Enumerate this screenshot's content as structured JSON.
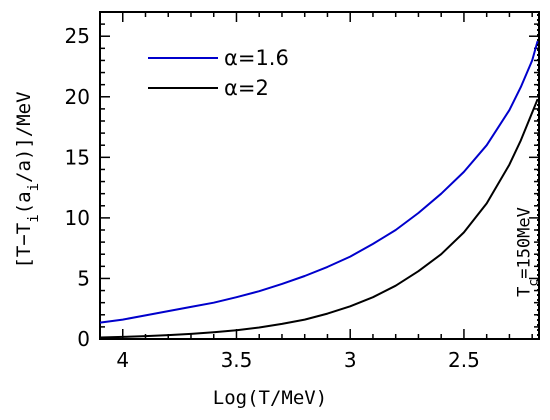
{
  "chart_data": {
    "type": "line",
    "xlabel": "Log(T/MeV)",
    "ylabel_parts": [
      "[T−T",
      "i",
      "(a",
      "i",
      "/a)]/MeV"
    ],
    "x_reversed": true,
    "xlim": [
      4.1,
      2.17
    ],
    "ylim": [
      0,
      27
    ],
    "xticks": [
      4,
      3.5,
      3,
      2.5
    ],
    "xtick_labels": [
      "4",
      "3.5",
      "3",
      "2.5"
    ],
    "yticks": [
      0,
      5,
      10,
      15,
      20,
      25
    ],
    "ytick_labels": [
      "0",
      "5",
      "10",
      "15",
      "20",
      "25"
    ],
    "grid": false,
    "legend": {
      "placement": "top-left",
      "items": [
        {
          "label": "α=1.6",
          "color": "#0000cc"
        },
        {
          "label": "α=2",
          "color": "#000000"
        }
      ]
    },
    "vline": {
      "x": 2.176,
      "style": "dotted",
      "label_main": "T",
      "label_sub": "c",
      "label_rest": "=150MeV"
    },
    "series": [
      {
        "name": "α=1.6",
        "color": "#0000cc",
        "x": [
          4.1,
          4.0,
          3.9,
          3.8,
          3.7,
          3.6,
          3.5,
          3.4,
          3.3,
          3.2,
          3.1,
          3.0,
          2.9,
          2.8,
          2.7,
          2.6,
          2.5,
          2.4,
          2.3,
          2.25,
          2.2,
          2.176
        ],
        "y": [
          1.35,
          1.6,
          1.95,
          2.3,
          2.65,
          3.0,
          3.45,
          3.95,
          4.55,
          5.2,
          5.95,
          6.8,
          7.85,
          9.0,
          10.4,
          12.0,
          13.8,
          16.0,
          18.9,
          20.8,
          23.0,
          24.6
        ]
      },
      {
        "name": "α=2",
        "color": "#000000",
        "x": [
          4.1,
          4.0,
          3.9,
          3.8,
          3.7,
          3.6,
          3.5,
          3.4,
          3.3,
          3.2,
          3.1,
          3.0,
          2.9,
          2.8,
          2.7,
          2.6,
          2.5,
          2.4,
          2.3,
          2.25,
          2.2,
          2.176
        ],
        "y": [
          0.12,
          0.17,
          0.24,
          0.32,
          0.42,
          0.55,
          0.72,
          0.95,
          1.25,
          1.6,
          2.1,
          2.7,
          3.45,
          4.4,
          5.6,
          7.0,
          8.8,
          11.2,
          14.4,
          16.4,
          18.7,
          19.8
        ]
      }
    ]
  }
}
